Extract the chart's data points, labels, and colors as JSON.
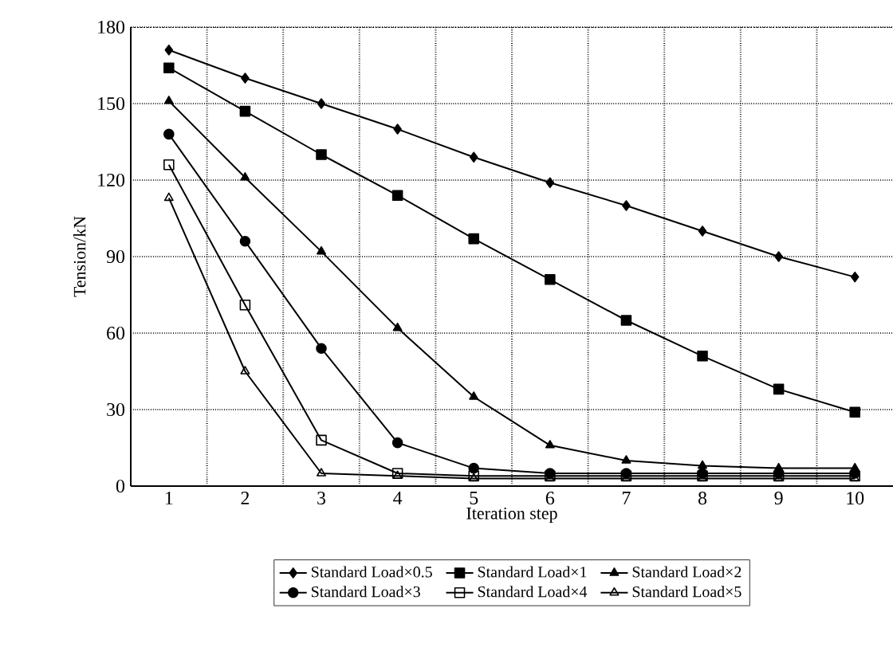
{
  "chart_data": {
    "type": "line",
    "xlabel": "Iteration step",
    "ylabel": "Tension/kN",
    "categories": [
      "1",
      "2",
      "3",
      "4",
      "5",
      "6",
      "7",
      "8",
      "9",
      "10"
    ],
    "ylim": [
      0,
      180
    ],
    "yticks": [
      0,
      30,
      60,
      90,
      120,
      150,
      180
    ],
    "grid": true,
    "legend": "bottom",
    "line_style": "solid",
    "series": [
      {
        "name": "Standard Load×0.5",
        "color": "#000000",
        "marker": "diamond",
        "values": [
          171,
          160,
          150,
          140,
          129,
          119,
          110,
          100,
          90,
          82
        ]
      },
      {
        "name": "Standard Load×1",
        "color": "#000000",
        "marker": "square",
        "values": [
          164,
          147,
          130,
          114,
          97,
          81,
          65,
          51,
          38,
          29
        ]
      },
      {
        "name": "Standard Load×2",
        "color": "#000000",
        "marker": "triangle",
        "values": [
          151,
          121,
          92,
          62,
          35,
          16,
          10,
          8,
          7,
          7
        ]
      },
      {
        "name": "Standard Load×3",
        "color": "#000000",
        "marker": "circle",
        "values": [
          138,
          96,
          54,
          17,
          7,
          5,
          5,
          5,
          5,
          5
        ]
      },
      {
        "name": "Standard Load×4",
        "color": "#000000",
        "marker": "square",
        "values": [
          126,
          71,
          18,
          5,
          4,
          4,
          4,
          4,
          4,
          4
        ]
      },
      {
        "name": "Standard Load×5",
        "color": "#000000",
        "marker": "triangle",
        "values": [
          113,
          45,
          5,
          4,
          3,
          3,
          3,
          3,
          3,
          3
        ]
      }
    ]
  }
}
